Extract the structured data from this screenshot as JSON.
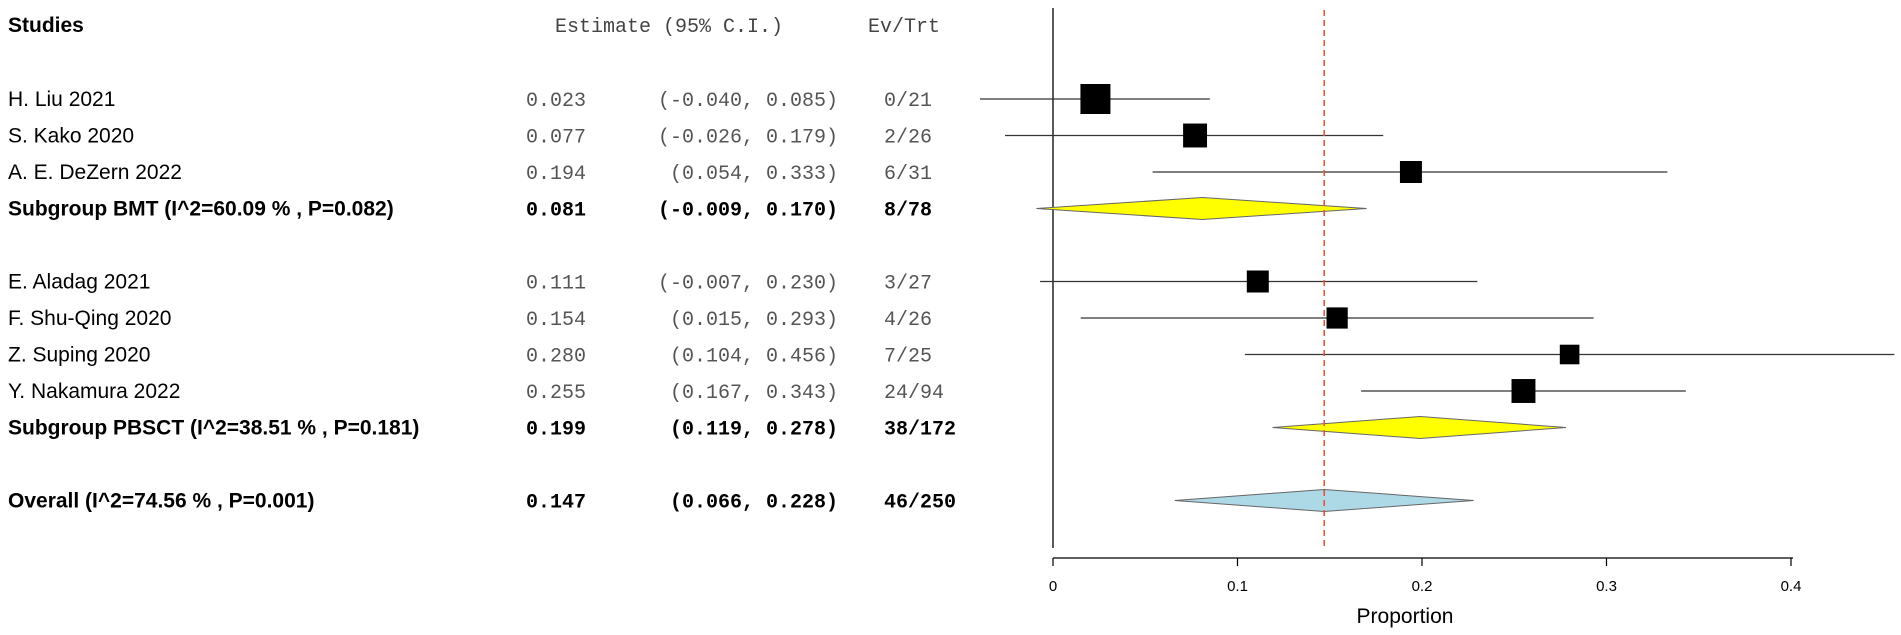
{
  "chart_data": {
    "type": "forest",
    "headers": {
      "studies": "Studies",
      "estimate": "Estimate (95% C.I.)",
      "events": "Ev/Trt"
    },
    "rows": [
      {
        "kind": "study",
        "label": "H. Liu 2021",
        "estimate": 0.023,
        "lower": -0.04,
        "upper": 0.085,
        "estimate_text": "0.023",
        "ci_text": "(-0.040, 0.085)",
        "events": "0/21",
        "weight": 1.0
      },
      {
        "kind": "study",
        "label": "S. Kako 2020",
        "estimate": 0.077,
        "lower": -0.026,
        "upper": 0.179,
        "estimate_text": "0.077",
        "ci_text": "(-0.026, 0.179)",
        "events": "2/26",
        "weight": 0.62
      },
      {
        "kind": "study",
        "label": "A. E. DeZern 2022",
        "estimate": 0.194,
        "lower": 0.054,
        "upper": 0.333,
        "estimate_text": "0.194",
        "ci_text": "(0.054, 0.333)",
        "events": "6/31",
        "weight": 0.5
      },
      {
        "kind": "subgroup",
        "label": "Subgroup BMT (I^2=60.09 % , P=0.082)",
        "estimate": 0.081,
        "lower": -0.009,
        "upper": 0.17,
        "estimate_text": "0.081",
        "ci_text": "(-0.009, 0.170)",
        "events": "8/78",
        "color": "#ffff00"
      },
      {
        "kind": "spacer"
      },
      {
        "kind": "study",
        "label": "E. Aladag 2021",
        "estimate": 0.111,
        "lower": -0.007,
        "upper": 0.23,
        "estimate_text": "0.111",
        "ci_text": "(-0.007, 0.230)",
        "events": "3/27",
        "weight": 0.5
      },
      {
        "kind": "study",
        "label": "F. Shu-Qing 2020",
        "estimate": 0.154,
        "lower": 0.015,
        "upper": 0.293,
        "estimate_text": "0.154",
        "ci_text": "(0.015, 0.293)",
        "events": "4/26",
        "weight": 0.45
      },
      {
        "kind": "study",
        "label": "Z. Suping 2020",
        "estimate": 0.28,
        "lower": 0.104,
        "upper": 0.456,
        "estimate_text": "0.280",
        "ci_text": "(0.104, 0.456)",
        "events": "7/25",
        "weight": 0.35
      },
      {
        "kind": "study",
        "label": "Y. Nakamura 2022",
        "estimate": 0.255,
        "lower": 0.167,
        "upper": 0.343,
        "estimate_text": "0.255",
        "ci_text": "(0.167, 0.343)",
        "events": "24/94",
        "weight": 0.62
      },
      {
        "kind": "subgroup",
        "label": "Subgroup PBSCT (I^2=38.51 % , P=0.181)",
        "estimate": 0.199,
        "lower": 0.119,
        "upper": 0.278,
        "estimate_text": "0.199",
        "ci_text": "(0.119, 0.278)",
        "events": "38/172",
        "color": "#ffff00"
      },
      {
        "kind": "spacer"
      },
      {
        "kind": "overall",
        "label": "Overall (I^2=74.56 % , P=0.001)",
        "estimate": 0.147,
        "lower": 0.066,
        "upper": 0.228,
        "estimate_text": "0.147",
        "ci_text": "(0.066, 0.228)",
        "events": "46/250",
        "color": "#add8e6"
      }
    ],
    "x_axis": {
      "label": "Proportion",
      "ticks": [
        0,
        0.1,
        0.2,
        0.3,
        0.4
      ],
      "tick_labels": [
        "0",
        "0.1",
        "0.2",
        "0.3",
        "0.4"
      ],
      "xlim": [
        -0.04,
        0.456
      ]
    },
    "reference_line": {
      "value": 0.147,
      "color": "#e8553a",
      "style": "dashed"
    }
  }
}
